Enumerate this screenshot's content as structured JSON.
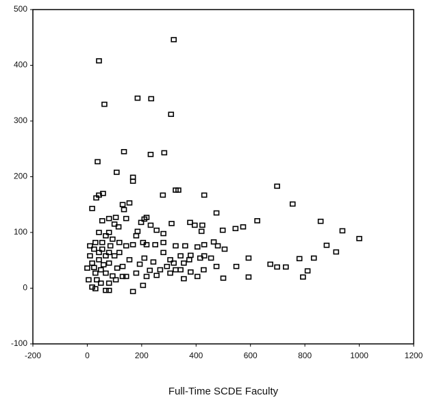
{
  "chart_data": {
    "type": "scatter",
    "x_label": "Full-Time SCDE Faculty",
    "color": "#000000",
    "marker": "square",
    "grid": false,
    "xlim": [
      -200,
      1200
    ],
    "xticks": [
      -200,
      0,
      200,
      400,
      600,
      800,
      1000,
      1200
    ],
    "ylim": [
      -100,
      500
    ],
    "yticks": [
      -100,
      0,
      100,
      200,
      300,
      400,
      500
    ],
    "x": [
      318,
      43,
      63,
      185,
      235,
      308,
      38,
      135,
      283,
      233,
      108,
      168,
      168,
      325,
      335,
      278,
      430,
      698,
      755,
      625,
      858,
      938,
      1000,
      880,
      915,
      833,
      780,
      810,
      793,
      698,
      673,
      730,
      593,
      593,
      548,
      500,
      545,
      573,
      475,
      498,
      465,
      420,
      395,
      423,
      378,
      310,
      218,
      210,
      198,
      155,
      130,
      135,
      18,
      33,
      43,
      58,
      115,
      100,
      55,
      185,
      255,
      280,
      325,
      430,
      405,
      480,
      505,
      380,
      415,
      455,
      475,
      428,
      405,
      355,
      380,
      325,
      305,
      268,
      255,
      230,
      218,
      180,
      143,
      168,
      205,
      243,
      280,
      305,
      210,
      193,
      155,
      130,
      110,
      93,
      68,
      30,
      5,
      0,
      10,
      10,
      30,
      55,
      80,
      93,
      68,
      43,
      80,
      118,
      143,
      168,
      218,
      250,
      43,
      50,
      68,
      35,
      80,
      60,
      80,
      25,
      18,
      100,
      118,
      85,
      55,
      25,
      43,
      68,
      30,
      50,
      105,
      130,
      18,
      80,
      318,
      343,
      355,
      293,
      343,
      360,
      430,
      375,
      280,
      205,
      180,
      233,
      143,
      105,
      80
    ],
    "values": [
      446,
      408,
      330,
      341,
      340,
      312,
      227,
      245,
      243,
      240,
      208,
      199,
      192,
      176,
      176,
      167,
      167,
      183,
      151,
      121,
      120,
      103,
      89,
      77,
      65,
      54,
      53,
      31,
      20,
      38,
      43,
      38,
      54,
      20,
      39,
      18,
      107,
      110,
      135,
      104,
      83,
      102,
      113,
      113,
      118,
      116,
      127,
      124,
      118,
      153,
      150,
      141,
      143,
      162,
      167,
      170,
      110,
      115,
      121,
      102,
      104,
      98,
      76,
      78,
      74,
      76,
      70,
      59,
      54,
      54,
      39,
      33,
      21,
      17,
      29,
      33,
      27,
      33,
      23,
      32,
      21,
      27,
      21,
      -6,
      5,
      47,
      64,
      51,
      54,
      43,
      51,
      39,
      36,
      22,
      -4,
      -1,
      15,
      36,
      58,
      76,
      82,
      70,
      64,
      88,
      94,
      100,
      100,
      82,
      76,
      78,
      78,
      78,
      51,
      33,
      27,
      15,
      9,
      42,
      45,
      37,
      45,
      58,
      64,
      76,
      82,
      70,
      64,
      58,
      27,
      9,
      15,
      21,
      2,
      -4,
      45,
      58,
      45,
      39,
      33,
      76,
      58,
      51,
      82,
      82,
      94,
      113,
      125,
      127,
      125
    ]
  }
}
